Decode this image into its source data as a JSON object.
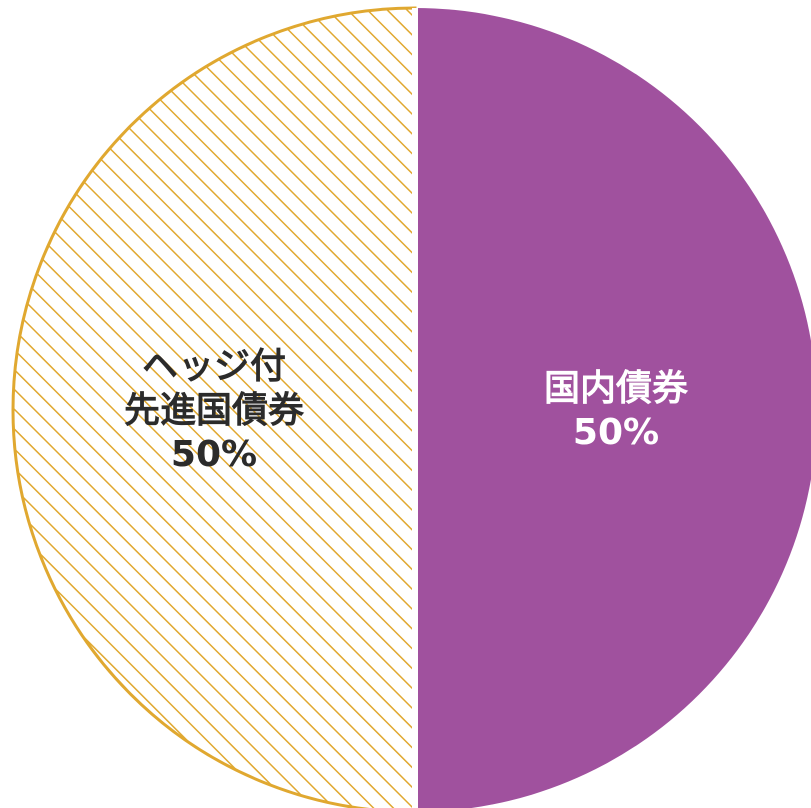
{
  "chart_data": {
    "type": "pie",
    "title": "",
    "slices": [
      {
        "label_lines": [
          "国内債券"
        ],
        "value": 50,
        "value_label": "50%",
        "color": "#A0519E",
        "label_color": "#ffffff",
        "fill_style": "solid"
      },
      {
        "label_lines": [
          "ヘッジ付",
          "先進国債券"
        ],
        "value": 50,
        "value_label": "50%",
        "color": "#E0A830",
        "label_color": "#2b2b2b",
        "fill_style": "hatched"
      }
    ],
    "start_angle_deg": 0,
    "direction": "clockwise",
    "separator_color": "#ffffff"
  }
}
